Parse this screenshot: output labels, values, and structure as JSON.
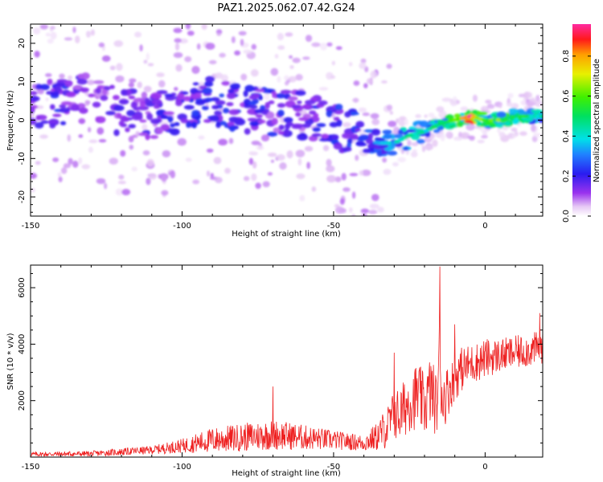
{
  "title": "PAZ1.2025.062.07.42.G24",
  "chart_data": [
    {
      "type": "heatmap",
      "xlabel": "Height of straight line (km)",
      "ylabel": "Frequency (Hz)",
      "xlim": [
        -150,
        19
      ],
      "ylim": [
        -25,
        25
      ],
      "xticks": [
        -150,
        -100,
        -50,
        0
      ],
      "yticks": [
        -20,
        -10,
        0,
        10,
        20
      ],
      "colorbar": {
        "label": "Normalized spectral amplitude",
        "range": [
          0,
          0.96
        ],
        "ticks": [
          0.0,
          0.2,
          0.4,
          0.6,
          0.8
        ],
        "colormap": "rainbow (white-violet-blue-cyan-green-yellow-red-magenta)"
      },
      "ridge": {
        "x": [
          -148,
          -140,
          -130,
          -120,
          -110,
          -100,
          -90,
          -80,
          -70,
          -60,
          -50,
          -40,
          -35,
          -30,
          -25,
          -20,
          -15,
          -10,
          -5,
          0,
          5,
          10,
          15,
          19
        ],
        "y": [
          3,
          5,
          6,
          2,
          1,
          3,
          5,
          3,
          2,
          1,
          -1,
          -5,
          -6,
          -6,
          -4,
          -3,
          -1,
          0,
          1,
          0,
          0,
          1,
          1,
          1
        ],
        "amplitude": [
          0.2,
          0.25,
          0.15,
          0.2,
          0.2,
          0.25,
          0.25,
          0.25,
          0.25,
          0.2,
          0.25,
          0.3,
          0.35,
          0.4,
          0.45,
          0.45,
          0.5,
          0.6,
          0.95,
          0.55,
          0.6,
          0.55,
          0.5,
          0.45
        ]
      }
    },
    {
      "type": "line",
      "xlabel": "Height of straight line (km)",
      "ylabel": "SNR (10 * v/v)",
      "xlim": [
        -150,
        19
      ],
      "ylim": [
        0,
        6800
      ],
      "xticks": [
        -150,
        -100,
        -50,
        0
      ],
      "yticks": [
        2000,
        4000,
        6000
      ],
      "series": [
        {
          "color": "#ee2020",
          "envelope_x": [
            -150,
            -130,
            -110,
            -100,
            -95,
            -90,
            -80,
            -70,
            -60,
            -50,
            -45,
            -40,
            -36,
            -32,
            -30,
            -28,
            -25,
            -22,
            -20,
            -18,
            -16,
            -15,
            -14,
            -12,
            -10,
            -8,
            -5,
            -2,
            0,
            5,
            10,
            15,
            19
          ],
          "envelope_mean": [
            100,
            120,
            250,
            400,
            500,
            600,
            700,
            800,
            700,
            600,
            550,
            500,
            700,
            1100,
            1500,
            1500,
            2000,
            2200,
            1800,
            2400,
            1800,
            3500,
            2000,
            2400,
            2800,
            3100,
            3300,
            3400,
            3500,
            3600,
            3700,
            3800,
            3900
          ],
          "envelope_spread": [
            80,
            100,
            150,
            250,
            350,
            450,
            500,
            550,
            450,
            350,
            300,
            300,
            500,
            800,
            900,
            1000,
            1100,
            1200,
            1100,
            1300,
            1100,
            1800,
            1100,
            900,
            800,
            800,
            700,
            700,
            700,
            600,
            600,
            600,
            600
          ],
          "peaks": [
            {
              "x": -70,
              "y": 2500
            },
            {
              "x": -30,
              "y": 3700
            },
            {
              "x": -15,
              "y": 6750
            },
            {
              "x": -10,
              "y": 4700
            },
            {
              "x": 18,
              "y": 5100
            }
          ]
        }
      ]
    }
  ]
}
